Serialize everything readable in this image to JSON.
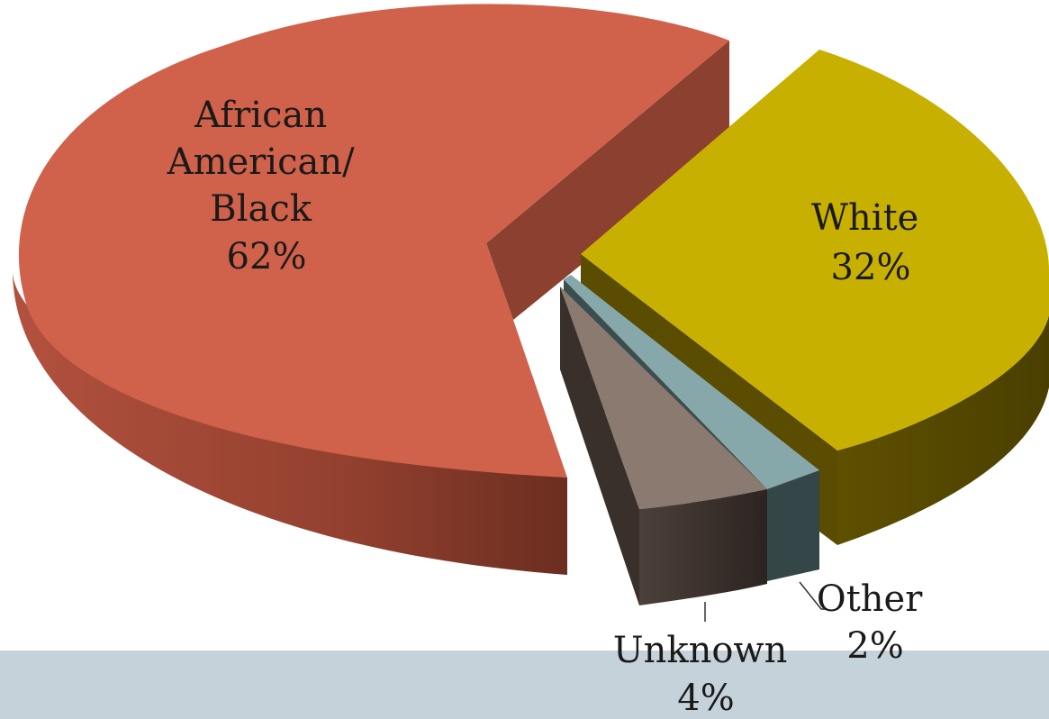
{
  "chart_data": {
    "type": "pie",
    "style": "3d-exploded",
    "title": "",
    "slices": [
      {
        "label": "African American/ Black",
        "label_lines": [
          "African",
          "American/",
          "Black"
        ],
        "value": 62,
        "value_text": "62%",
        "color": "#d0614a"
      },
      {
        "label": "White",
        "label_lines": [
          "White"
        ],
        "value": 32,
        "value_text": "32%",
        "color": "#c8b000"
      },
      {
        "label": "Other",
        "label_lines": [
          "Other"
        ],
        "value": 2,
        "value_text": "2%",
        "color": "#87a8aa"
      },
      {
        "label": "Unknown",
        "label_lines": [
          "Unknown"
        ],
        "value": 4,
        "value_text": "4%",
        "color": "#8a7a70"
      }
    ],
    "legend": "none",
    "data_labels": "on-slice and leader lines"
  }
}
